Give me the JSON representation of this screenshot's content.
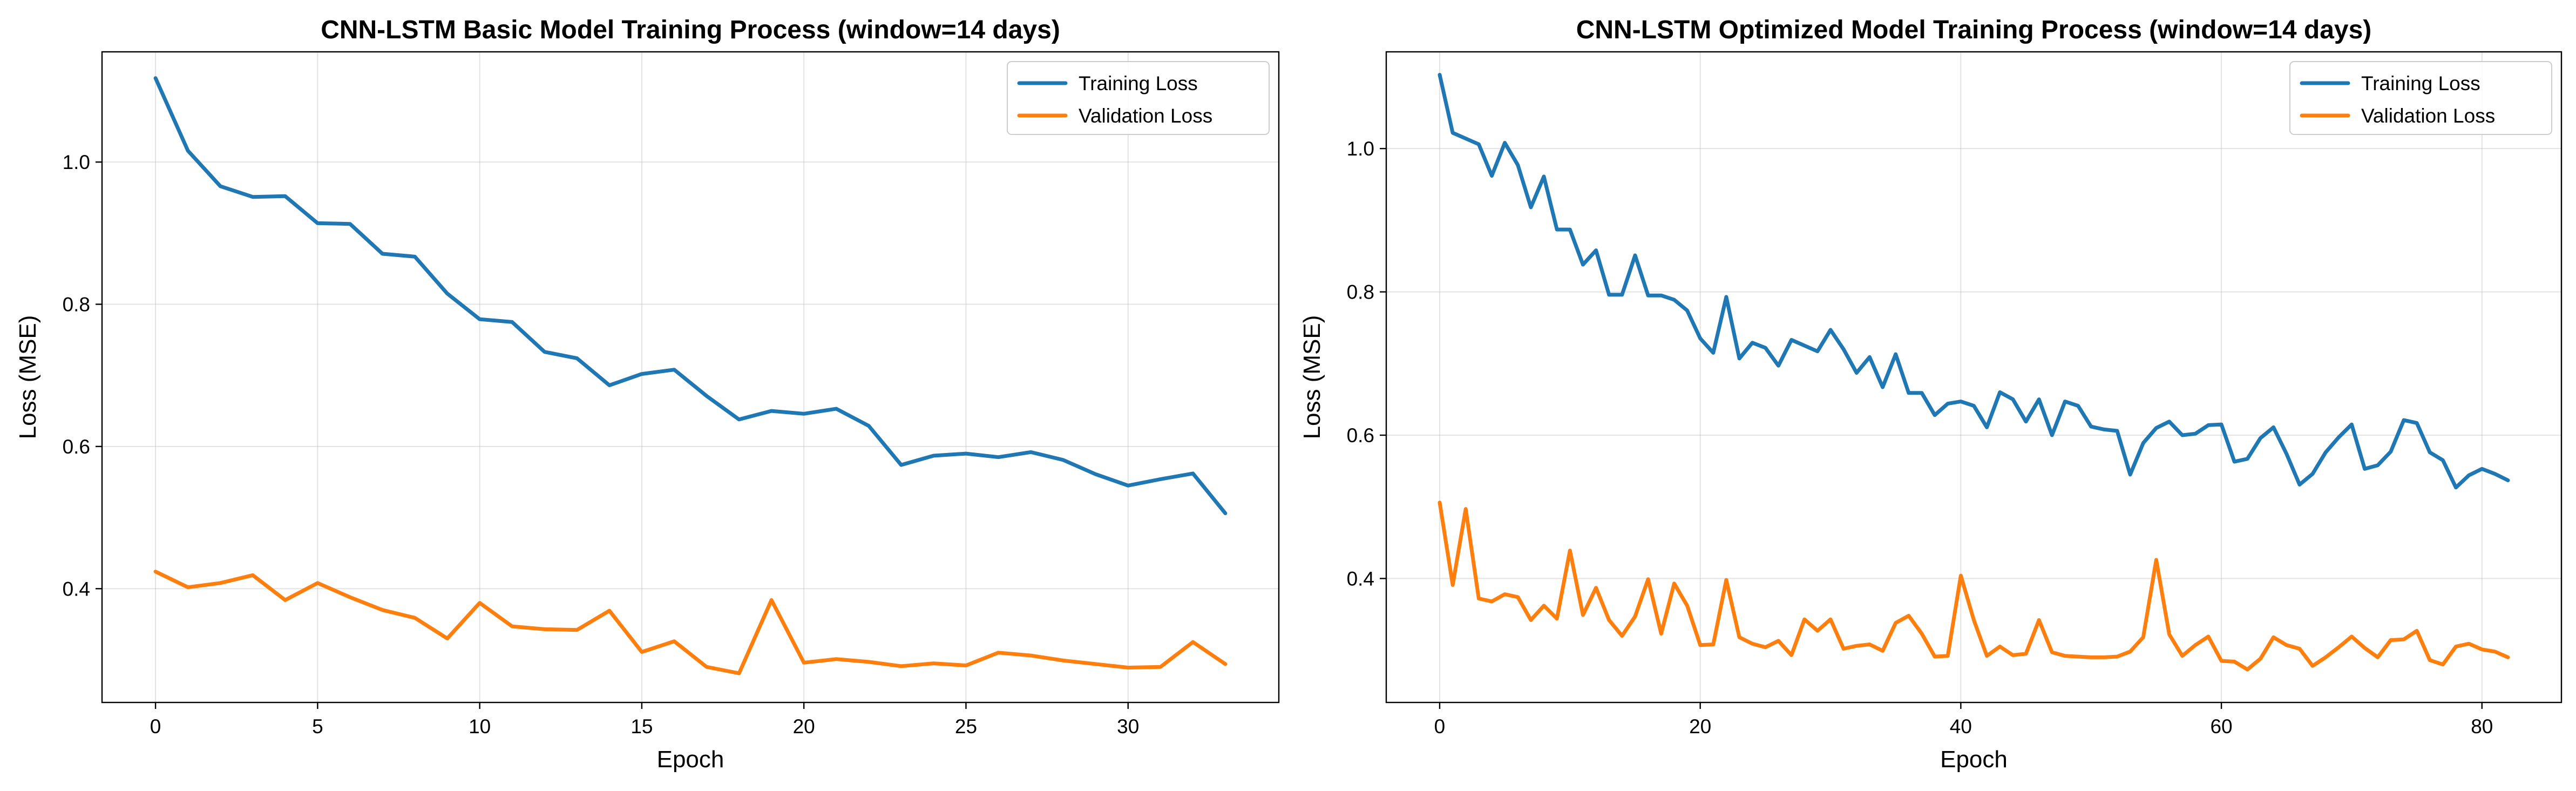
{
  "chart_data": [
    {
      "type": "line",
      "title": "CNN-LSTM Basic Model Training Process (window=14 days)",
      "xlabel": "Epoch",
      "ylabel": "Loss (MSE)",
      "xlim": [
        -1.65,
        34.65
      ],
      "ylim": [
        0.24,
        1.155
      ],
      "xticks": [
        0,
        5,
        10,
        15,
        20,
        25,
        30
      ],
      "yticks": [
        0.4,
        0.6,
        0.8,
        1.0
      ],
      "yticks_text": [
        "0.4",
        "0.6",
        "0.8",
        "1.0"
      ],
      "grid": true,
      "legend_position": "upper right",
      "series": [
        {
          "name": "Training Loss",
          "color": "#1f77b4",
          "values": [
            1.118,
            1.016,
            0.966,
            0.951,
            0.952,
            0.914,
            0.913,
            0.871,
            0.867,
            0.815,
            0.779,
            0.775,
            0.733,
            0.724,
            0.686,
            0.702,
            0.708,
            0.671,
            0.638,
            0.65,
            0.646,
            0.653,
            0.629,
            0.574,
            0.587,
            0.59,
            0.585,
            0.592,
            0.581,
            0.561,
            0.545,
            0.554,
            0.562,
            0.506
          ]
        },
        {
          "name": "Validation Loss",
          "color": "#ff7f0e",
          "values": [
            0.424,
            0.402,
            0.408,
            0.419,
            0.384,
            0.408,
            0.388,
            0.37,
            0.359,
            0.33,
            0.38,
            0.347,
            0.343,
            0.342,
            0.369,
            0.311,
            0.326,
            0.29,
            0.281,
            0.384,
            0.296,
            0.301,
            0.297,
            0.291,
            0.295,
            0.292,
            0.31,
            0.306,
            0.299,
            0.294,
            0.289,
            0.29,
            0.325,
            0.294
          ]
        }
      ]
    },
    {
      "type": "line",
      "title": "CNN-LSTM Optimized Model Training Process (window=14 days)",
      "xlabel": "Epoch",
      "ylabel": "Loss (MSE)",
      "xlim": [
        -4.1,
        86.1
      ],
      "ylim": [
        0.227,
        1.135
      ],
      "xticks": [
        0,
        20,
        40,
        60,
        80
      ],
      "yticks": [
        0.4,
        0.6,
        0.8,
        1.0
      ],
      "yticks_text": [
        "0.4",
        "0.6",
        "0.8",
        "1.0"
      ],
      "grid": true,
      "legend_position": "upper right",
      "series": [
        {
          "name": "Training Loss",
          "color": "#1f77b4",
          "values": [
            1.103,
            1.022,
            1.014,
            1.006,
            0.962,
            1.008,
            0.977,
            0.918,
            0.961,
            0.887,
            0.887,
            0.838,
            0.858,
            0.796,
            0.796,
            0.851,
            0.795,
            0.795,
            0.789,
            0.774,
            0.735,
            0.715,
            0.793,
            0.707,
            0.729,
            0.722,
            0.697,
            0.733,
            0.725,
            0.717,
            0.747,
            0.72,
            0.687,
            0.709,
            0.667,
            0.713,
            0.659,
            0.659,
            0.628,
            0.644,
            0.647,
            0.641,
            0.611,
            0.66,
            0.65,
            0.619,
            0.65,
            0.6,
            0.647,
            0.641,
            0.612,
            0.608,
            0.606,
            0.545,
            0.589,
            0.61,
            0.619,
            0.6,
            0.602,
            0.614,
            0.615,
            0.563,
            0.567,
            0.596,
            0.611,
            0.574,
            0.531,
            0.546,
            0.576,
            0.597,
            0.615,
            0.553,
            0.558,
            0.577,
            0.621,
            0.617,
            0.576,
            0.565,
            0.527,
            0.544,
            0.553,
            0.546,
            0.537
          ]
        },
        {
          "name": "Validation Loss",
          "color": "#ff7f0e",
          "values": [
            0.506,
            0.391,
            0.497,
            0.372,
            0.368,
            0.378,
            0.374,
            0.342,
            0.362,
            0.344,
            0.439,
            0.349,
            0.387,
            0.342,
            0.32,
            0.347,
            0.399,
            0.323,
            0.393,
            0.362,
            0.307,
            0.308,
            0.398,
            0.318,
            0.309,
            0.304,
            0.313,
            0.293,
            0.343,
            0.327,
            0.343,
            0.302,
            0.306,
            0.308,
            0.299,
            0.338,
            0.348,
            0.323,
            0.291,
            0.292,
            0.404,
            0.342,
            0.292,
            0.305,
            0.293,
            0.295,
            0.342,
            0.297,
            0.292,
            0.291,
            0.29,
            0.29,
            0.291,
            0.298,
            0.318,
            0.426,
            0.322,
            0.292,
            0.307,
            0.319,
            0.285,
            0.284,
            0.273,
            0.288,
            0.318,
            0.307,
            0.302,
            0.278,
            0.29,
            0.304,
            0.319,
            0.303,
            0.29,
            0.314,
            0.315,
            0.327,
            0.286,
            0.28,
            0.305,
            0.309,
            0.301,
            0.298,
            0.29
          ]
        }
      ]
    }
  ]
}
